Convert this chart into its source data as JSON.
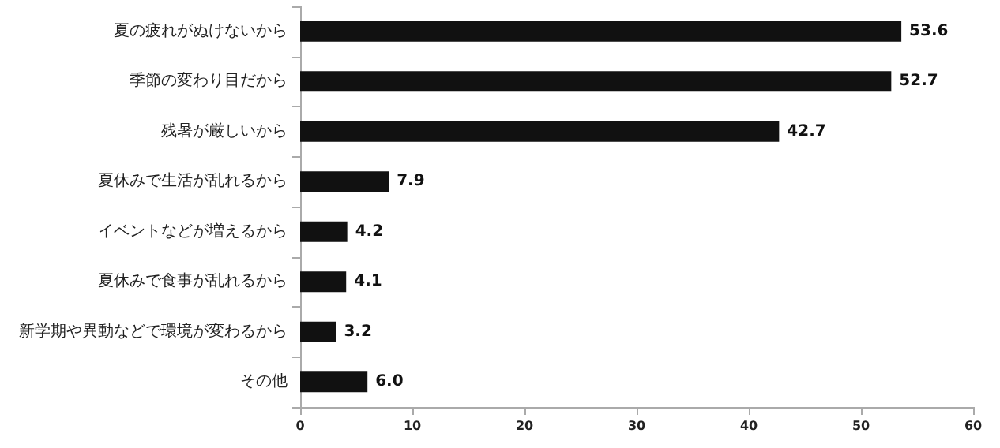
{
  "chart_data": {
    "type": "bar",
    "orientation": "horizontal",
    "categories": [
      "夏の疲れがぬけないから",
      "季節の変わり目だから",
      "残暑が厳しいから",
      "夏休みで生活が乱れるから",
      "イベントなどが増えるから",
      "夏休みで食事が乱れるから",
      "新学期や異動などで環境が変わるから",
      "その他"
    ],
    "values": [
      53.6,
      52.7,
      42.7,
      7.9,
      4.2,
      4.1,
      3.2,
      6.0
    ],
    "value_labels": [
      "53.6",
      "52.7",
      "42.7",
      "7.9",
      "4.2",
      "4.1",
      "3.2",
      "6.0"
    ],
    "color": "#111111",
    "xlim": [
      0,
      60
    ],
    "xticks": [
      0,
      10,
      20,
      30,
      40,
      50,
      60
    ],
    "grid": false
  }
}
